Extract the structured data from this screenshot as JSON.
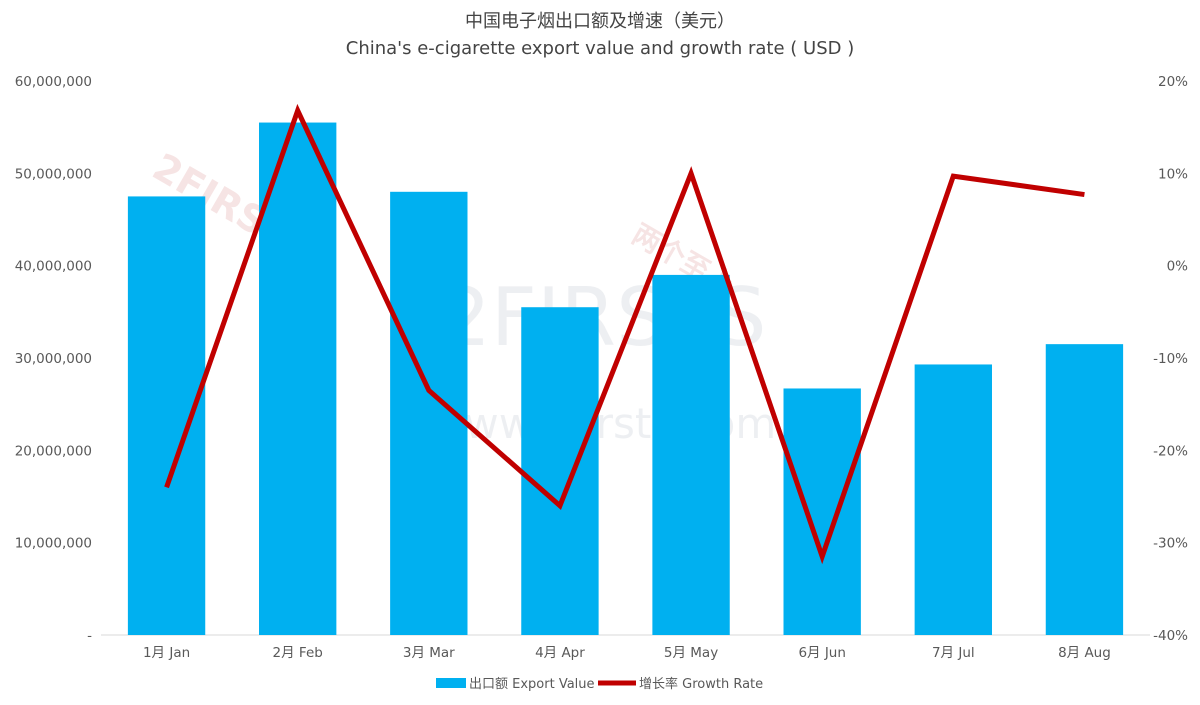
{
  "chart_data": {
    "type": "bar",
    "title": "中国电子烟出口额及增速（美元）",
    "subtitle": "China's e-cigarette export value and growth rate ( USD )",
    "categories": [
      "1月 Jan",
      "2月 Feb",
      "3月 Mar",
      "4月 Apr",
      "5月 May",
      "6月 Jun",
      "7月 Jul",
      "8月 Aug"
    ],
    "series": [
      {
        "name": "出口额 Export Value",
        "type": "bar",
        "axis": "left",
        "color": "#00b0f0",
        "values": [
          47500000,
          55500000,
          48000000,
          35500000,
          39000000,
          26700000,
          29300000,
          31500000
        ]
      },
      {
        "name": "增长率 Growth Rate",
        "type": "line",
        "axis": "right",
        "color": "#c00000",
        "values": [
          -24.0,
          16.8,
          -13.5,
          -26.0,
          10.0,
          -31.5,
          9.7,
          7.7
        ]
      }
    ],
    "y_left": {
      "ylim": [
        0,
        60000000
      ],
      "ticks": [
        "-",
        "10,000,000",
        "20,000,000",
        "30,000,000",
        "40,000,000",
        "50,000,000",
        "60,000,000"
      ]
    },
    "y_right": {
      "ylim": [
        -40,
        20
      ],
      "ticks": [
        "-40%",
        "-30%",
        "-20%",
        "-10%",
        "0%",
        "10%",
        "20%"
      ]
    },
    "grid": false,
    "legend": "bottom-center"
  },
  "watermark": {
    "brand": "2FIRSTS",
    "brand_cn": "两个至上",
    "url": "www.2firsts.com"
  }
}
